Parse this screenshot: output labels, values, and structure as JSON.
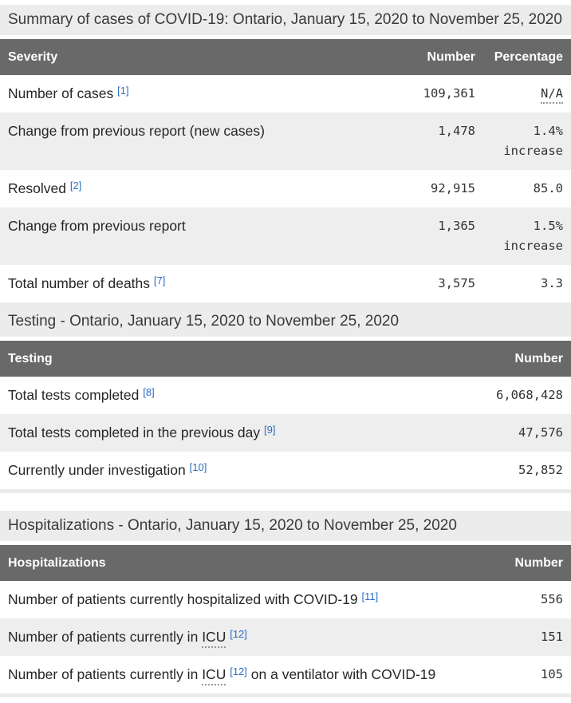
{
  "colors": {
    "header_bg": "#696969",
    "header_text": "#ffffff",
    "caption_bg": "#ececec",
    "stripe_bg": "#eeeeee",
    "link_blue": "#2b6cc4",
    "label_text": "#262626"
  },
  "summary_table": {
    "caption": "Summary of cases of COVID-19: Ontario, January 15, 2020 to November 25, 2020",
    "headers": [
      "Severity",
      "Number",
      "Percentage"
    ],
    "rows": [
      {
        "label": "Number of cases",
        "footnote": "[1]",
        "number": "109,361",
        "percentage_abbr": "N/A"
      },
      {
        "label": "Change from previous report (new cases)",
        "number": "1,478",
        "percentage": "1.4% increase"
      },
      {
        "label": "Resolved",
        "footnote": "[2]",
        "number": "92,915",
        "percentage": "85.0"
      },
      {
        "label": "Change from previous report",
        "number": "1,365",
        "percentage": "1.5% increase"
      },
      {
        "label": "Total number of deaths",
        "footnote": "[7]",
        "number": "3,575",
        "percentage": "3.3"
      }
    ]
  },
  "testing_table": {
    "caption": "Testing - Ontario, January 15, 2020 to November 25, 2020",
    "headers": [
      "Testing",
      "Number"
    ],
    "rows": [
      {
        "label": "Total tests completed",
        "footnote": "[8]",
        "number": "6,068,428"
      },
      {
        "label": "Total tests completed in the previous day",
        "footnote": "[9]",
        "number": "47,576"
      },
      {
        "label": "Currently under investigation",
        "footnote": "[10]",
        "number": "52,852"
      }
    ]
  },
  "hospitalizations_table": {
    "caption": "Hospitalizations - Ontario, January 15, 2020 to November 25, 2020",
    "headers": [
      "Hospitalizations",
      "Number"
    ],
    "rows": [
      {
        "label": "Number of patients currently hospitalized with COVID-19",
        "footnote": "[11]",
        "number": "556"
      },
      {
        "label": "Number of patients currently in",
        "abbr": "ICU",
        "footnote": "[12]",
        "number": "151"
      },
      {
        "label": "Number of patients currently in",
        "abbr": "ICU",
        "footnote": "[12]",
        "suffix": "on a ventilator with COVID-19",
        "number": "105"
      }
    ]
  }
}
